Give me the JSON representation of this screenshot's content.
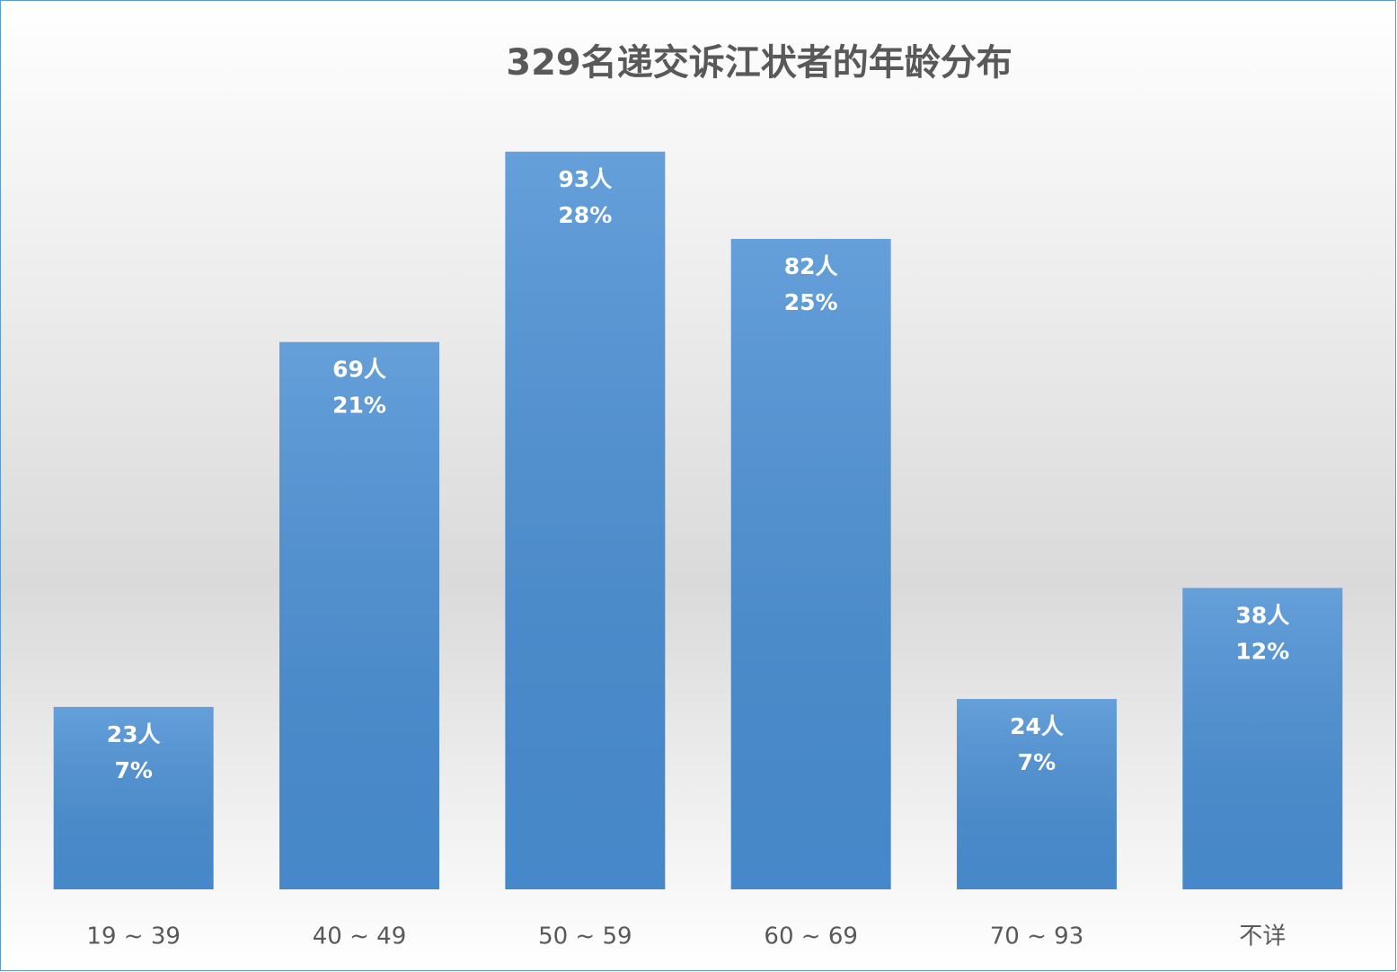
{
  "chart_data": {
    "type": "bar",
    "title": "329名递交诉江状者的年龄分布",
    "categories": [
      "19 ~ 39",
      "40 ~ 49",
      "50 ~ 59",
      "60 ~ 69",
      "70 ~ 93",
      "不详"
    ],
    "values": [
      23,
      69,
      93,
      82,
      24,
      38
    ],
    "value_labels": [
      "23人",
      "69人",
      "93人",
      "82人",
      "24人",
      "38人"
    ],
    "share_labels": [
      "7%",
      "21%",
      "28%",
      "25%",
      "7%",
      "12%"
    ],
    "color": "#4a8fd4",
    "ylim": [
      0,
      100
    ]
  }
}
